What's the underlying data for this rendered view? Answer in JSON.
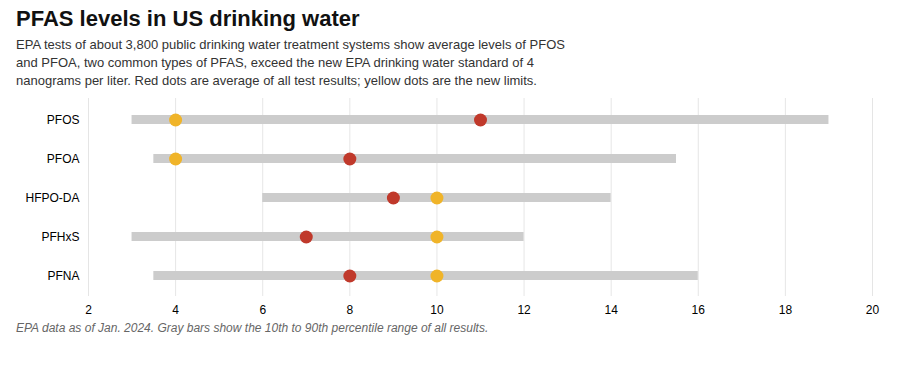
{
  "chart_data": {
    "type": "range",
    "orientation": "horizontal",
    "title": "PFAS levels in US drinking water",
    "subtitle": "EPA tests of about 3,800 public drinking water treatment systems show average levels of PFOS\nand PFOA, two common types of PFAS, exceed the new EPA drinking water standard of 4\nnanograms per liter. Red dots are average of all test results; yellow dots are the new limits.",
    "footnote": "EPA data as of Jan. 2024. Gray bars show the 10th to 90th percentile range of all results.",
    "categories": [
      "PFOS",
      "PFOA",
      "HFPO-DA",
      "PFHxS",
      "PFNA"
    ],
    "low": [
      3.0,
      3.5,
      6.0,
      3.0,
      3.5
    ],
    "high": [
      19.0,
      15.5,
      14.0,
      12.0,
      16.0
    ],
    "color": "#cccccc",
    "series": [
      {
        "color": "#f0b429",
        "values": [
          4,
          4,
          10,
          10,
          10
        ]
      },
      {
        "color": "#c0392b",
        "values": [
          11,
          8,
          9,
          7,
          8
        ]
      }
    ],
    "xlim": [
      2,
      20
    ],
    "xticks": [
      2,
      4,
      6,
      8,
      10,
      12,
      14,
      16,
      18,
      20
    ],
    "grid": true
  }
}
